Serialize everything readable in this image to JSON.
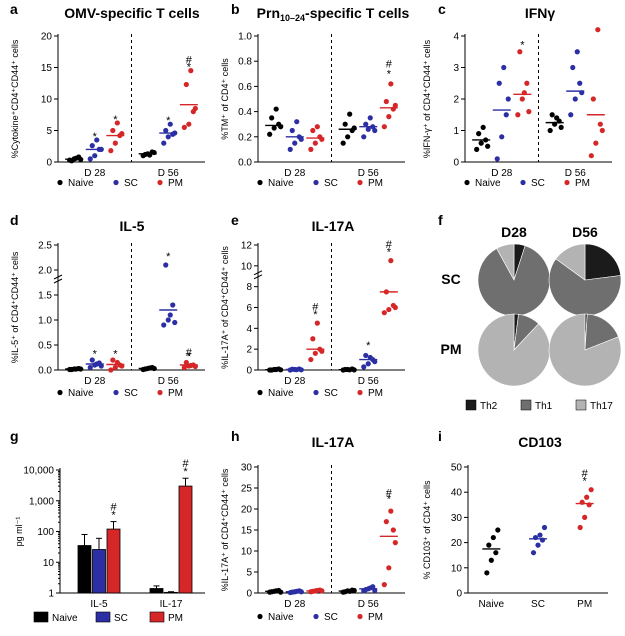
{
  "colors": {
    "naive": "#000000",
    "sc": "#2b2fa3",
    "pm": "#d62728",
    "th2": "#1b1b1b",
    "th1": "#6f6f6f",
    "th17": "#b3b3b3"
  },
  "legend": {
    "naive": "Naive",
    "sc": "SC",
    "pm": "PM"
  },
  "chart_data": [
    {
      "id": "a",
      "type": "scatter",
      "panel_label": "a",
      "title": "OMV-specific T cells",
      "ylabel": "%Cytokine⁺CD4⁺CD44⁺ cells",
      "ylim": [
        0,
        20
      ],
      "yticks": [
        0,
        5,
        10,
        15,
        20
      ],
      "groups": [
        "D 28",
        "D 56"
      ],
      "series": [
        {
          "name": "Naive",
          "points": [
            [
              0.3,
              0.5,
              0.8,
              0.2,
              0.6,
              0.4
            ],
            [
              1.0,
              1.3,
              1.6,
              1.2,
              1.1,
              1.5
            ]
          ],
          "means": [
            0.45,
            1.3
          ]
        },
        {
          "name": "SC",
          "points": [
            [
              0.5,
              1.0,
              2.0,
              2.6,
              3.5,
              2.0
            ],
            [
              3.0,
              4.0,
              4.4,
              5.0,
              6.0,
              4.6
            ]
          ],
          "means": [
            2.0,
            4.6
          ]
        },
        {
          "name": "PM",
          "points": [
            [
              1.8,
              3.0,
              4.2,
              5.0,
              6.2,
              4.5
            ],
            [
              5.5,
              6.0,
              8.0,
              12.3,
              14.5,
              8.5
            ]
          ],
          "means": [
            4.2,
            9.1
          ]
        }
      ],
      "annotations": [
        {
          "group": 0,
          "series": 1,
          "y": 3.5,
          "text": "*"
        },
        {
          "group": 0,
          "series": 2,
          "y": 6.2,
          "text": "*"
        },
        {
          "group": 1,
          "series": 1,
          "y": 6.0,
          "text": "*"
        },
        {
          "group": 1,
          "series": 2,
          "y": 14.5,
          "text": "*"
        },
        {
          "group": 1,
          "series": 2,
          "y": 15.6,
          "text": "#"
        }
      ]
    },
    {
      "id": "b",
      "type": "scatter",
      "panel_label": "b",
      "title": "Prn10–24-specific T cells",
      "ylabel": "%TM⁺ of CD4⁺ cells",
      "ylim": [
        0,
        1.0
      ],
      "yticks": [
        0,
        0.2,
        0.4,
        0.6,
        0.8,
        1.0
      ],
      "groups": [
        "D 28",
        "D 56"
      ],
      "series": [
        {
          "name": "Naive",
          "points": [
            [
              0.22,
              0.27,
              0.3,
              0.35,
              0.42,
              0.28
            ],
            [
              0.15,
              0.2,
              0.25,
              0.3,
              0.38,
              0.27
            ]
          ],
          "means": [
            0.29,
            0.26
          ]
        },
        {
          "name": "SC",
          "points": [
            [
              0.1,
              0.15,
              0.2,
              0.25,
              0.32,
              0.18
            ],
            [
              0.2,
              0.26,
              0.28,
              0.3,
              0.35,
              0.25
            ]
          ],
          "means": [
            0.2,
            0.28
          ]
        },
        {
          "name": "PM",
          "points": [
            [
              0.1,
              0.15,
              0.2,
              0.25,
              0.28,
              0.18
            ],
            [
              0.28,
              0.36,
              0.42,
              0.48,
              0.62,
              0.45
            ]
          ],
          "means": [
            0.19,
            0.43
          ]
        }
      ],
      "annotations": [
        {
          "group": 1,
          "series": 2,
          "y": 0.67,
          "text": "*"
        },
        {
          "group": 1,
          "series": 2,
          "y": 0.75,
          "text": "#"
        }
      ]
    },
    {
      "id": "c",
      "type": "scatter",
      "panel_label": "c",
      "title": "IFNγ",
      "ylabel": "%IFN-γ⁺ of CD4⁺CD44⁺ cells",
      "ylim": [
        0,
        4
      ],
      "yticks": [
        0,
        1,
        2,
        3,
        4
      ],
      "groups": [
        "D 28",
        "D 56"
      ],
      "series": [
        {
          "name": "Naive",
          "points": [
            [
              0.4,
              0.6,
              0.7,
              0.9,
              1.1,
              0.5
            ],
            [
              1.0,
              1.2,
              1.3,
              1.5,
              1.4,
              1.1
            ]
          ],
          "means": [
            0.7,
            1.25
          ]
        },
        {
          "name": "SC",
          "points": [
            [
              0.1,
              0.8,
              1.5,
              2.5,
              3.0,
              2.0
            ],
            [
              1.5,
              2.0,
              2.5,
              3.0,
              3.5,
              2.2
            ]
          ],
          "means": [
            1.65,
            2.25
          ]
        },
        {
          "name": "PM",
          "points": [
            [
              1.5,
              2.0,
              2.5,
              3.5,
              2.2,
              1.6
            ],
            [
              0.2,
              0.6,
              1.2,
              2.0,
              4.2,
              1.0
            ]
          ],
          "means": [
            2.15,
            1.5
          ]
        }
      ],
      "annotations": [
        {
          "group": 0,
          "series": 2,
          "y": 3.6,
          "text": "*"
        }
      ]
    },
    {
      "id": "d",
      "type": "scatter",
      "panel_label": "d",
      "title": "IL-5",
      "ylabel": "%IL-5⁺ of CD4⁺CD44⁺ cells",
      "ylim": [
        0,
        2.5
      ],
      "yticks": [
        0,
        0.5,
        1.0,
        1.5,
        2.0,
        2.5
      ],
      "broken_axis": true,
      "groups": [
        "D 28",
        "D 56"
      ],
      "series": [
        {
          "name": "Naive",
          "points": [
            [
              0.01,
              0.02,
              0.03,
              0.01,
              0.02,
              0.02
            ],
            [
              0.01,
              0.03,
              0.05,
              0.02,
              0.04,
              0.03
            ]
          ],
          "means": [
            0.02,
            0.03
          ]
        },
        {
          "name": "SC",
          "points": [
            [
              0.05,
              0.1,
              0.14,
              0.2,
              0.12,
              0.08
            ],
            [
              0.9,
              1.0,
              1.3,
              2.1,
              1.1,
              0.95
            ]
          ],
          "means": [
            0.12,
            1.2
          ]
        },
        {
          "name": "PM",
          "points": [
            [
              0.0,
              0.05,
              0.1,
              0.2,
              0.15,
              0.08
            ],
            [
              0.05,
              0.08,
              0.1,
              0.15,
              0.09,
              0.07
            ]
          ],
          "means": [
            0.11,
            0.1
          ]
        }
      ],
      "annotations": [
        {
          "group": 0,
          "series": 1,
          "y": 0.25,
          "text": "*"
        },
        {
          "group": 0,
          "series": 2,
          "y": 0.25,
          "text": "*"
        },
        {
          "group": 1,
          "series": 1,
          "y": 2.2,
          "text": "*"
        },
        {
          "group": 1,
          "series": 2,
          "y": 0.2,
          "text": "*"
        },
        {
          "group": 1,
          "series": 2,
          "y": 0.28,
          "text": "#"
        }
      ]
    },
    {
      "id": "e",
      "type": "scatter",
      "panel_label": "e",
      "title": "IL-17A",
      "ylabel": "%IL-17A⁺ of CD4⁺CD44⁺ cells",
      "ylim": [
        0,
        12
      ],
      "yticks": [
        0,
        2,
        4,
        6,
        8,
        10,
        12
      ],
      "broken_axis": true,
      "groups": [
        "D 28",
        "D 56"
      ],
      "series": [
        {
          "name": "Naive",
          "points": [
            [
              0.0,
              0.05,
              0.1,
              0.0,
              0.05,
              0.02
            ],
            [
              0.0,
              0.05,
              0.1,
              0.05,
              0.02,
              0.01
            ]
          ],
          "means": [
            0.03,
            0.03
          ]
        },
        {
          "name": "SC",
          "points": [
            [
              0.0,
              0.05,
              0.1,
              0.08,
              0.03,
              0.02
            ],
            [
              0.3,
              0.6,
              1.0,
              1.4,
              1.2,
              0.8
            ]
          ],
          "means": [
            0.05,
            1.0
          ]
        },
        {
          "name": "PM",
          "points": [
            [
              1.0,
              1.6,
              2.0,
              3.0,
              4.5,
              1.8
            ],
            [
              5.5,
              5.8,
              6.2,
              7.5,
              10.5,
              6.0
            ]
          ],
          "means": [
            2.0,
            7.5
          ]
        }
      ],
      "annotations": [
        {
          "group": 0,
          "series": 2,
          "y": 5.0,
          "text": "*"
        },
        {
          "group": 0,
          "series": 2,
          "y": 5.7,
          "text": "#"
        },
        {
          "group": 1,
          "series": 1,
          "y": 2.0,
          "text": "*"
        },
        {
          "group": 1,
          "series": 2,
          "y": 11.0,
          "text": "*"
        },
        {
          "group": 1,
          "series": 2,
          "y": 11.7,
          "text": "#"
        }
      ]
    },
    {
      "id": "f",
      "type": "pie",
      "panel_label": "f",
      "columns": [
        "D28",
        "D56"
      ],
      "rows": [
        "SC",
        "PM"
      ],
      "categories": [
        "Th2",
        "Th1",
        "Th17"
      ],
      "values": {
        "SC": {
          "D28": [
            5,
            87,
            8
          ],
          "D56": [
            23,
            62,
            15
          ]
        },
        "PM": {
          "D28": [
            2,
            10,
            88
          ],
          "D56": [
            1,
            18,
            81
          ]
        }
      }
    },
    {
      "id": "g",
      "type": "bar",
      "panel_label": "g",
      "ylabel": "pg ml⁻¹",
      "yscale": "log",
      "ylim": [
        1,
        10000
      ],
      "yticks": [
        "1",
        "10",
        "100",
        "1,000",
        "10,000"
      ],
      "categories": [
        "IL-5",
        "IL-17"
      ],
      "series": [
        {
          "name": "Naive",
          "values": [
            35,
            1.4
          ],
          "errors": [
            80,
            1.7
          ]
        },
        {
          "name": "SC",
          "values": [
            26,
            1.05
          ],
          "errors": [
            60,
            1.1
          ]
        },
        {
          "name": "PM",
          "values": [
            120,
            3000
          ],
          "errors": [
            210,
            5400
          ]
        }
      ],
      "annotations": [
        {
          "category": 0,
          "series": 2,
          "text": "*"
        },
        {
          "category": 0,
          "series": 2,
          "text": "#"
        },
        {
          "category": 1,
          "series": 2,
          "text": "*"
        },
        {
          "category": 1,
          "series": 2,
          "text": "#"
        }
      ]
    },
    {
      "id": "h",
      "type": "scatter",
      "panel_label": "h",
      "title": "IL-17A",
      "ylabel": "%IL-17A⁺ of CD4⁺CD44⁺ cells",
      "ylim": [
        0,
        30
      ],
      "yticks": [
        0,
        5,
        10,
        15,
        20,
        25,
        30
      ],
      "groups": [
        "D 28",
        "D 56"
      ],
      "series": [
        {
          "name": "Naive",
          "points": [
            [
              0.2,
              0.4,
              0.6,
              0.3,
              0.5,
              0.2
            ],
            [
              0.2,
              0.5,
              0.7,
              0.3,
              0.4,
              0.6
            ]
          ],
          "means": [
            0.4,
            0.45
          ]
        },
        {
          "name": "SC",
          "points": [
            [
              0.1,
              0.3,
              0.5,
              0.2,
              0.4,
              0.3
            ],
            [
              0.5,
              1.0,
              1.5,
              0.8,
              1.2,
              0.6
            ]
          ],
          "means": [
            0.3,
            1.0
          ]
        },
        {
          "name": "PM",
          "points": [
            [
              0.3,
              0.5,
              0.7,
              0.4,
              0.6,
              0.5
            ],
            [
              2.0,
              6.0,
              15.0,
              17.0,
              19.5,
              12.0
            ]
          ],
          "means": [
            0.5,
            13.5
          ]
        }
      ],
      "annotations": [
        {
          "group": 1,
          "series": 2,
          "y": 21.5,
          "text": "*"
        },
        {
          "group": 1,
          "series": 2,
          "y": 23.0,
          "text": "#"
        }
      ]
    },
    {
      "id": "i",
      "type": "scatter",
      "panel_label": "i",
      "title": "CD103",
      "ylabel": "% CD103⁺ of CD4⁺ cells",
      "ylim": [
        0,
        50
      ],
      "yticks": [
        0,
        10,
        20,
        30,
        40,
        50
      ],
      "groups": [
        "Naive",
        "SC",
        "PM"
      ],
      "series": [
        {
          "name": "all",
          "points": [
            [
              8,
              13,
              16,
              19,
              22,
              25
            ],
            [
              16,
              19,
              21,
              22,
              23,
              26
            ],
            [
              26,
              30,
              35,
              36,
              38,
              41
            ]
          ],
          "means": [
            17.5,
            21.5,
            35.5
          ]
        }
      ],
      "annotations": [
        {
          "group": 2,
          "y": 43,
          "text": "*"
        },
        {
          "group": 2,
          "y": 46,
          "text": "#"
        }
      ]
    }
  ]
}
